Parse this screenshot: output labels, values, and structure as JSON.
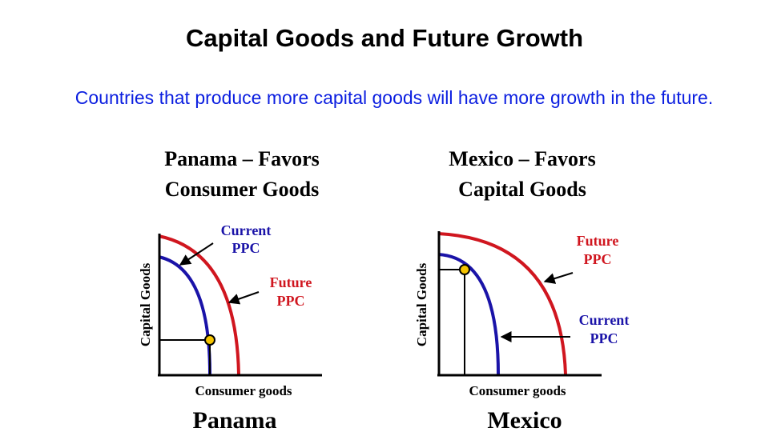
{
  "title": "Capital Goods and Future Growth",
  "subtitle": "Countries that produce more capital goods will have more growth in the future.",
  "panels": [
    {
      "heading_line1": "Panama – Favors",
      "heading_line2": "Consumer Goods",
      "current_line1": "Current",
      "current_line2": "PPC",
      "future_line1": "Future",
      "future_line2": "PPC",
      "y_axis_label": "Capital Goods",
      "x_axis_label": "Consumer goods",
      "country_label": "Panama"
    },
    {
      "heading_line1": "Mexico – Favors",
      "heading_line2": "Capital Goods",
      "current_line1": "Current",
      "current_line2": "PPC",
      "future_line1": "Future",
      "future_line2": "PPC",
      "y_axis_label": "Capital Goods",
      "x_axis_label": "Consumer goods",
      "country_label": "Mexico"
    }
  ],
  "colors": {
    "subtitle": "#0b1ee0",
    "current_ppc": "#1a13a8",
    "future_ppc": "#d0161f",
    "point_fill": "#f5c400",
    "axis": "#000000"
  }
}
